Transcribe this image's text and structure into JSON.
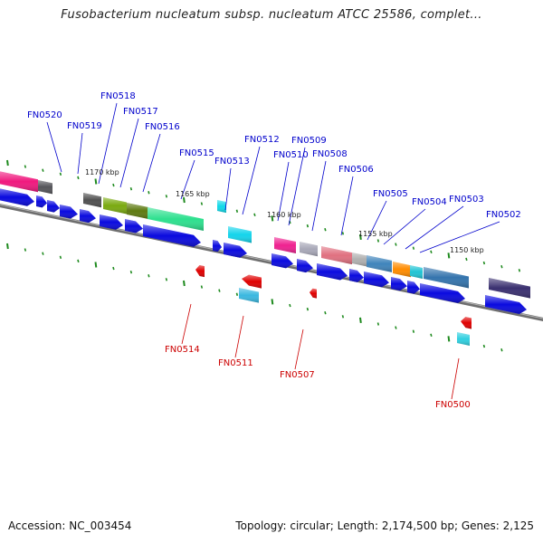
{
  "title": "Fusobacterium nucleatum subsp. nucleatum ATCC 25586, complet...",
  "footer": {
    "accession": "Accession: NC_003454",
    "topology": "Topology: circular; Length: 2,174,500 bp; Genes: 2,125"
  },
  "colors": {
    "forward_gene": "#0a0adf",
    "reverse_gene": "#e00000",
    "forward_label": "#0000cc",
    "reverse_label": "#cc0000",
    "backbone": "#808080",
    "tick": "#1e8a1e"
  },
  "kbp_labels": [
    "1170 kbp",
    "1165 kbp",
    "1160 kbp",
    "1155 kbp",
    "1150 kbp"
  ],
  "forward_labels": [
    "FN0520",
    "FN0519",
    "FN0518",
    "FN0517",
    "FN0516",
    "FN0515",
    "FN0513",
    "FN0512",
    "FN0510",
    "FN0509",
    "FN0508",
    "FN0506",
    "FN0505",
    "FN0504",
    "FN0503",
    "FN0502"
  ],
  "reverse_labels": [
    "FN0514",
    "FN0511",
    "FN0507",
    "FN0500"
  ]
}
